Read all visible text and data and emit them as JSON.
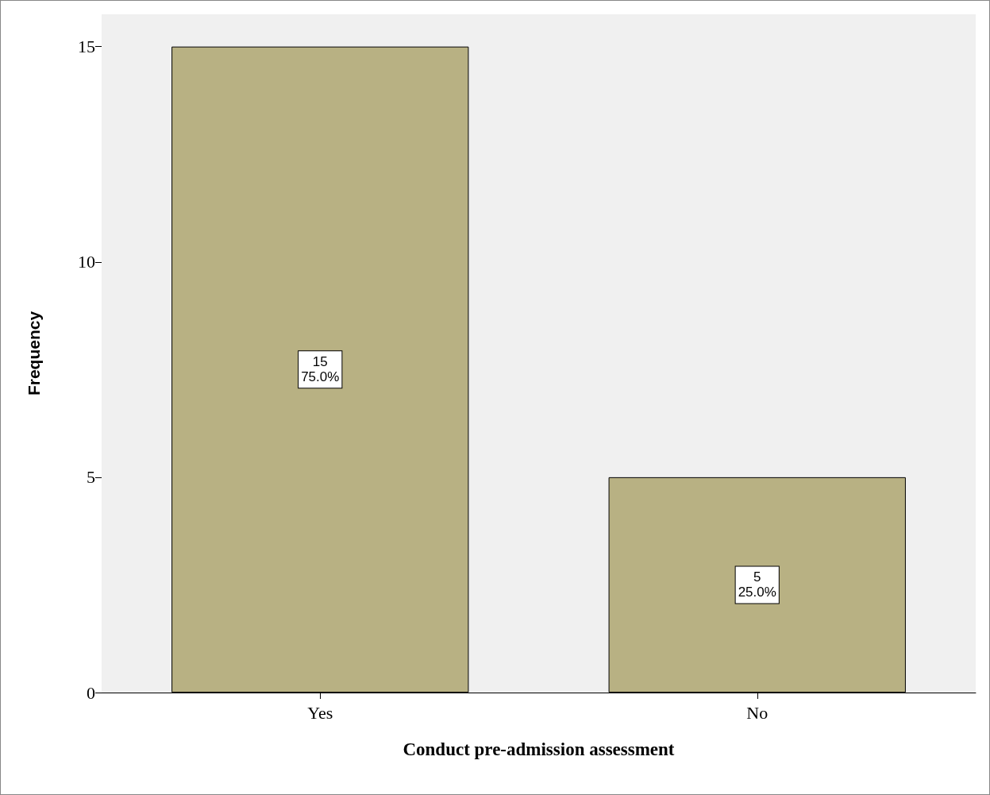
{
  "chart_data": {
    "type": "bar",
    "xlabel": "Conduct pre-admission assessment",
    "ylabel": "Frequency",
    "categories": [
      "Yes",
      "No"
    ],
    "values": [
      15,
      5
    ],
    "color": "#b8b183",
    "value_labels": [
      "15\n75.0%",
      "5\n25.0%"
    ],
    "ylim": [
      0,
      15.75
    ],
    "yticks": [
      0,
      5,
      10,
      15
    ]
  }
}
